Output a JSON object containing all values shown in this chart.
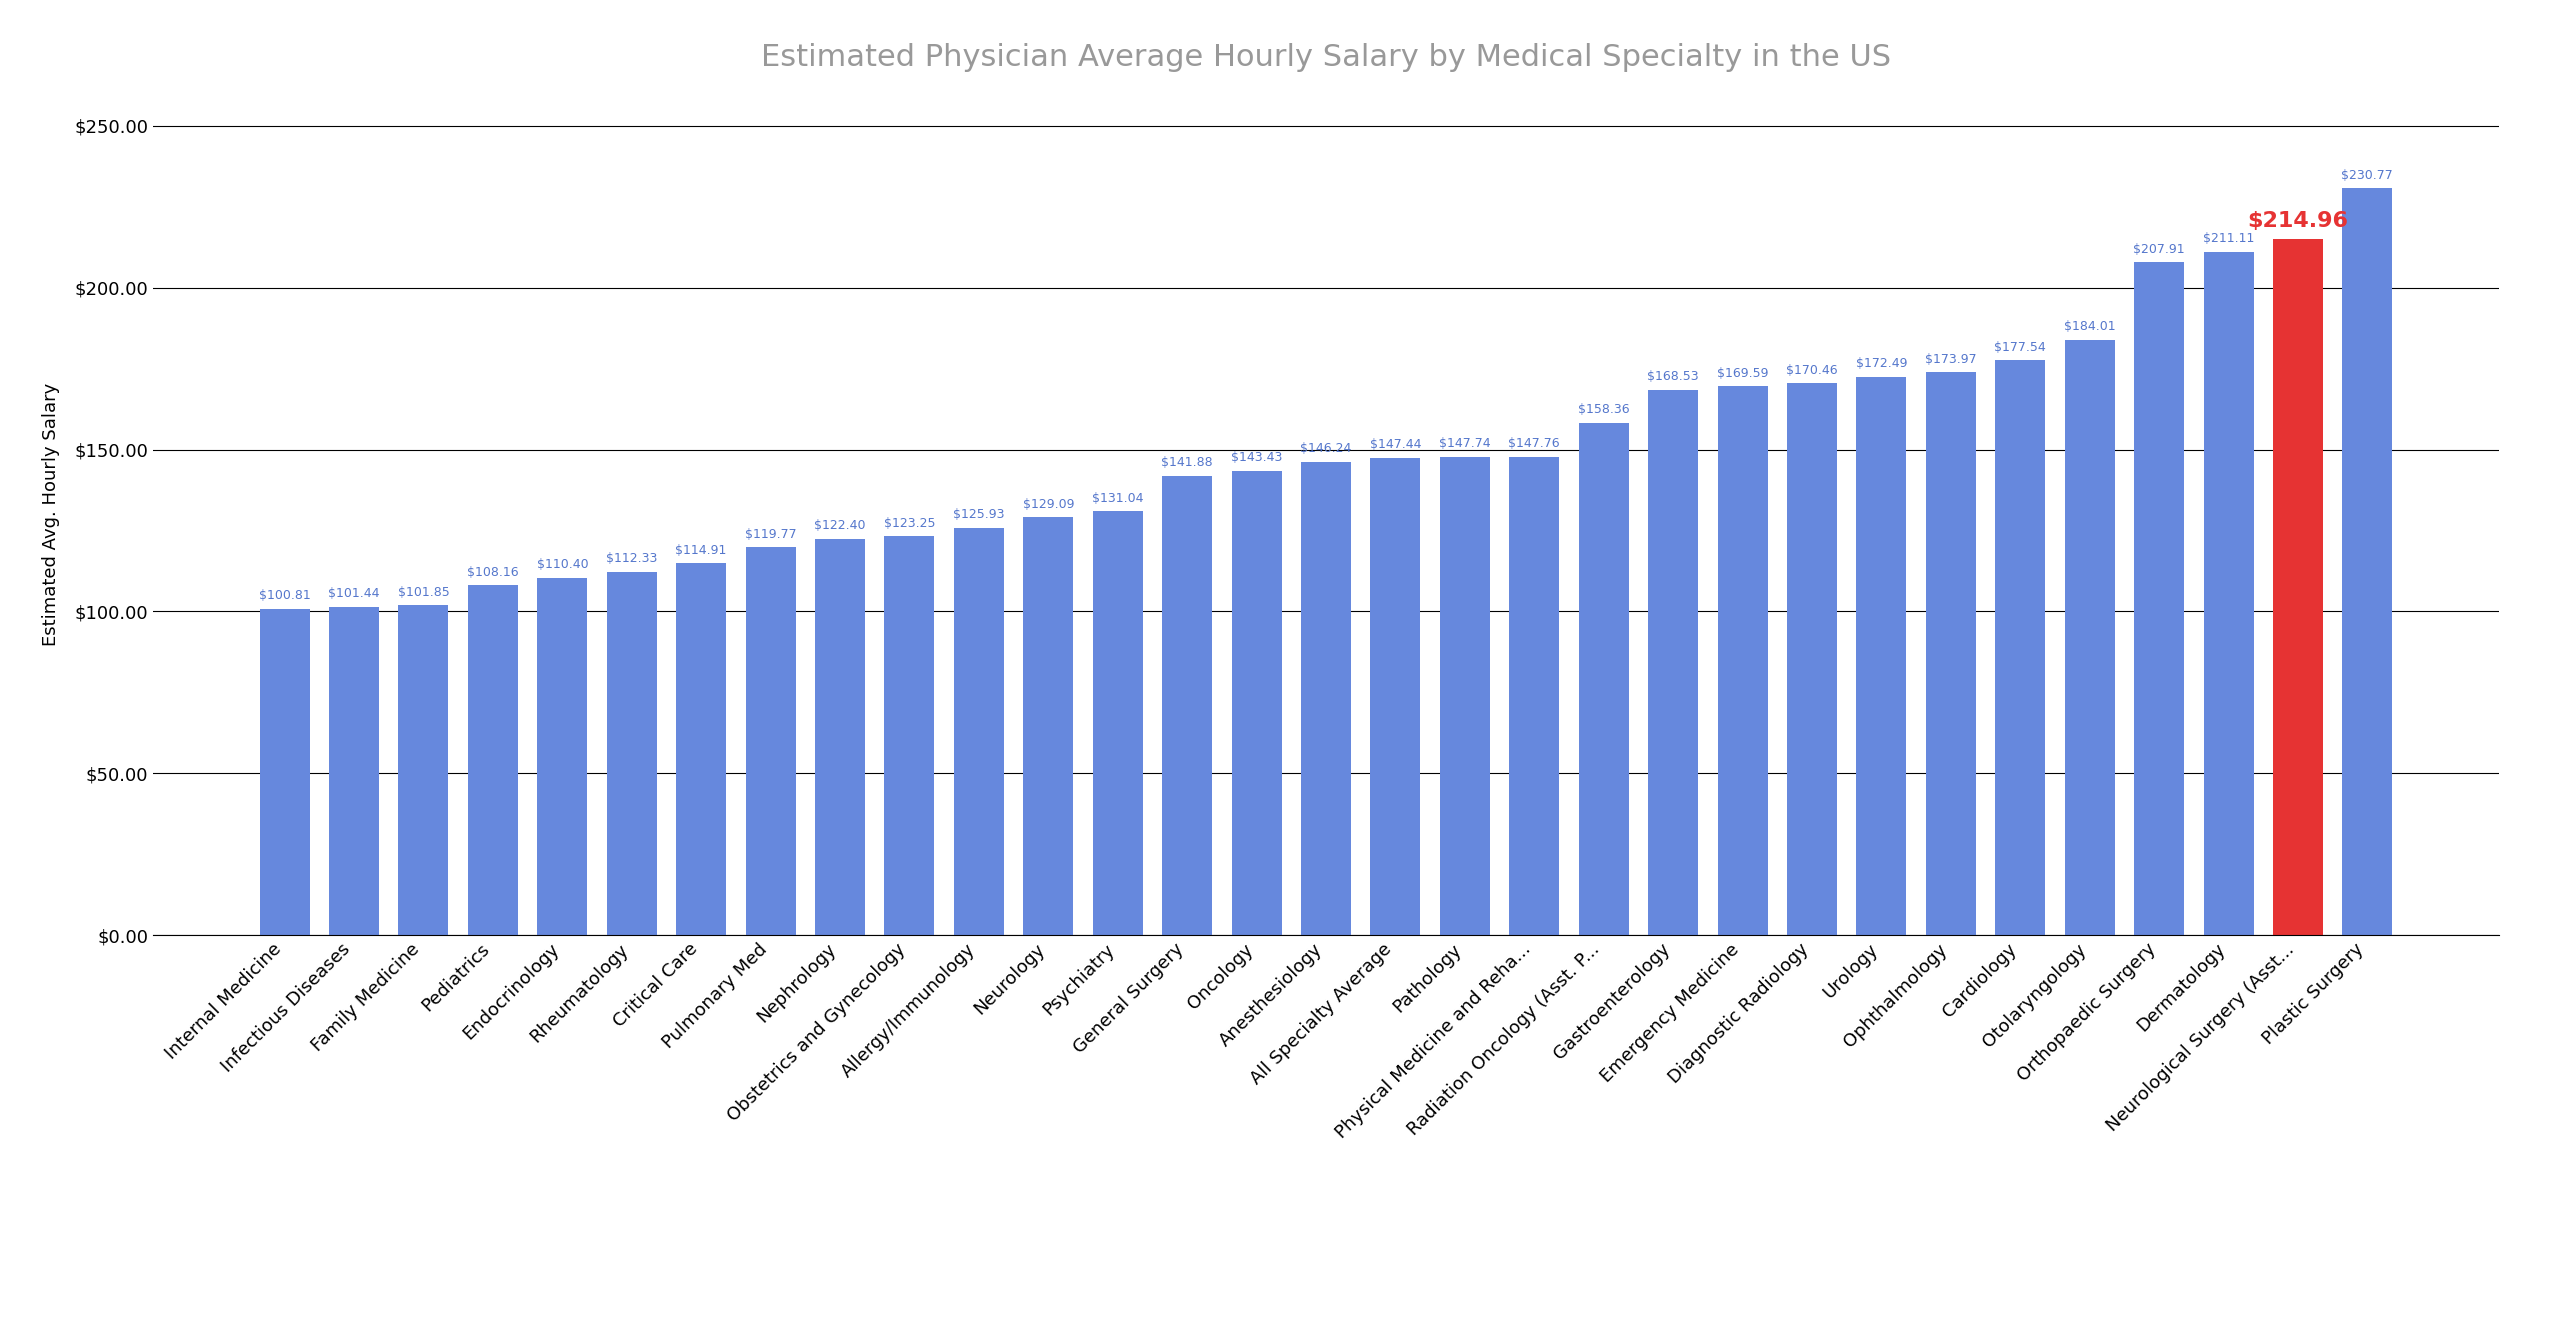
{
  "title": "Estimated Physician Average Hourly Salary by Medical Specialty in the US",
  "ylabel": "Estimated Avg. Hourly Salary",
  "categories": [
    "Internal Medicine",
    "Infectious Diseases",
    "Family Medicine",
    "Pediatrics",
    "Endocrinology",
    "Rheumatology",
    "Critical Care",
    "Pulmonary Med",
    "Nephrology",
    "Obstetrics and Gynecology",
    "Allergy/Immunology",
    "Neurology",
    "Psychiatry",
    "General Surgery",
    "Oncology",
    "Anesthesiology",
    "All Specialty Average",
    "Pathology",
    "Physical Medicine and Reha...",
    "Radiation Oncology (Asst. P...",
    "Gastroenterology",
    "Emergency Medicine",
    "Diagnostic Radiology",
    "Urology",
    "Ophthalmology",
    "Cardiology",
    "Otolaryngology",
    "Orthopaedic Surgery",
    "Dermatology",
    "Neurological Surgery (Asst...",
    "Plastic Surgery"
  ],
  "values": [
    100.81,
    101.44,
    101.85,
    108.16,
    110.4,
    112.33,
    114.91,
    119.77,
    122.4,
    123.25,
    125.93,
    129.09,
    131.04,
    141.88,
    143.43,
    146.24,
    147.44,
    147.74,
    147.76,
    158.36,
    168.53,
    169.59,
    170.46,
    172.49,
    173.97,
    177.54,
    184.01,
    207.91,
    211.11,
    214.96,
    230.77
  ],
  "highlight_index": 29,
  "highlight_color": "#e63333",
  "bar_color": "#6688dd",
  "label_color_normal": "#5577cc",
  "label_color_highlight": "#e63333",
  "background_color": "#ffffff",
  "ylim": [
    0,
    260
  ],
  "yticks": [
    0,
    50,
    100,
    150,
    200,
    250
  ],
  "title_color": "#999999",
  "title_fontsize": 22,
  "label_fontsize": 9,
  "highlight_label_fontsize": 16,
  "axis_label_fontsize": 13,
  "tick_fontsize": 13,
  "bar_width": 0.72
}
